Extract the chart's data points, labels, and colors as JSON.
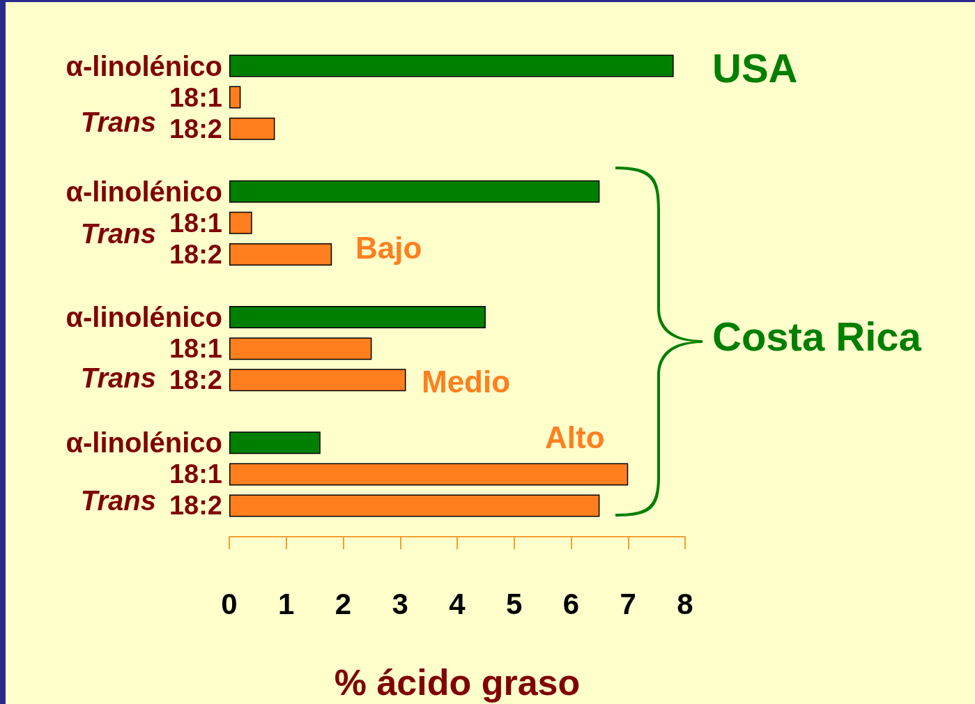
{
  "chart_data": {
    "type": "bar",
    "orientation": "horizontal",
    "xlabel": "% ácido graso",
    "categories": [
      "α-linolénico",
      "18:1",
      "18:2",
      null,
      "α-linolénico",
      "18:1",
      "18:2",
      null,
      "α-linolénico",
      "18:1",
      "18:2",
      null,
      "α-linolénico",
      "18:1",
      "18:2"
    ],
    "values": [
      7.8,
      0.2,
      0.8,
      null,
      6.5,
      0.4,
      1.8,
      null,
      4.5,
      2.5,
      3.1,
      null,
      1.6,
      7.0,
      6.5
    ],
    "colors": [
      "#007f00",
      "#ff7f1f",
      "#ff7f1f",
      null,
      "#007f00",
      "#ff7f1f",
      "#ff7f1f",
      null,
      "#007f00",
      "#ff7f1f",
      "#ff7f1f",
      null,
      "#007f00",
      "#ff7f1f",
      "#ff7f1f"
    ],
    "xlim": [
      0,
      8
    ],
    "xticks": [
      0,
      1,
      2,
      3,
      4,
      5,
      6,
      7,
      8
    ],
    "annotations": [
      "USA",
      "Costa Rica",
      "Bajo",
      "Medio",
      "Alto",
      "Trans",
      "Trans",
      "Trans",
      "Trans"
    ]
  }
}
